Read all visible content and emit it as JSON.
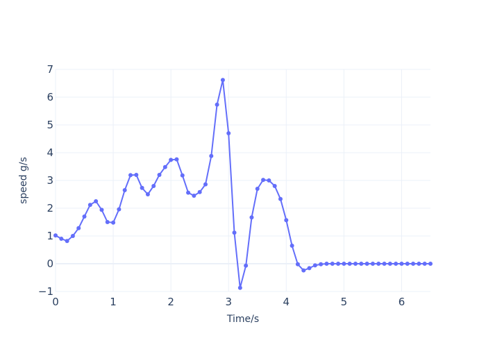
{
  "chart_data": {
    "type": "line",
    "mode": "lines+markers",
    "xlabel": "Time/s",
    "ylabel": "speed g/s",
    "xlim": [
      0,
      6.5
    ],
    "ylim": [
      -1,
      7
    ],
    "x_ticks": [
      0,
      1,
      2,
      3,
      4,
      5,
      6
    ],
    "y_ticks": [
      -1,
      0,
      1,
      2,
      3,
      4,
      5,
      6,
      7
    ],
    "x_tick_labels": [
      "0",
      "1",
      "2",
      "3",
      "4",
      "5",
      "6"
    ],
    "y_tick_labels": [
      "−1",
      "0",
      "1",
      "2",
      "3",
      "4",
      "5",
      "6",
      "7"
    ],
    "grid": true,
    "line_color": "#636efa",
    "series": [
      {
        "x": [
          0,
          0.1,
          0.2,
          0.3,
          0.4,
          0.5,
          0.6,
          0.7,
          0.8,
          0.9,
          1.0,
          1.1,
          1.2,
          1.3,
          1.4,
          1.5,
          1.6,
          1.7,
          1.8,
          1.9,
          2.0,
          2.1,
          2.2,
          2.3,
          2.4,
          2.5,
          2.6,
          2.7,
          2.8,
          2.9,
          3.0,
          3.1,
          3.2,
          3.3,
          3.4,
          3.5,
          3.6,
          3.7,
          3.8,
          3.9,
          4.0,
          4.1,
          4.2,
          4.3,
          4.4,
          4.5,
          4.6,
          4.7,
          4.8,
          4.9,
          5.0,
          5.1,
          5.2,
          5.3,
          5.4,
          5.5,
          5.6,
          5.7,
          5.8,
          5.9,
          6.0,
          6.1,
          6.2,
          6.3,
          6.4,
          6.5
        ],
        "y": [
          1.02,
          0.9,
          0.82,
          1.0,
          1.28,
          1.7,
          2.12,
          2.25,
          1.94,
          1.5,
          1.48,
          1.96,
          2.65,
          3.19,
          3.2,
          2.73,
          2.5,
          2.8,
          3.2,
          3.48,
          3.74,
          3.76,
          3.18,
          2.56,
          2.45,
          2.58,
          2.86,
          3.88,
          5.73,
          6.62,
          4.7,
          1.12,
          -0.87,
          -0.07,
          1.67,
          2.7,
          3.02,
          3.0,
          2.8,
          2.33,
          1.57,
          0.65,
          -0.02,
          -0.24,
          -0.16,
          -0.06,
          -0.02,
          0,
          0,
          0,
          0,
          0,
          0,
          0,
          0,
          0,
          0,
          0,
          0,
          0,
          0,
          0,
          0,
          0,
          0,
          0
        ]
      }
    ]
  }
}
